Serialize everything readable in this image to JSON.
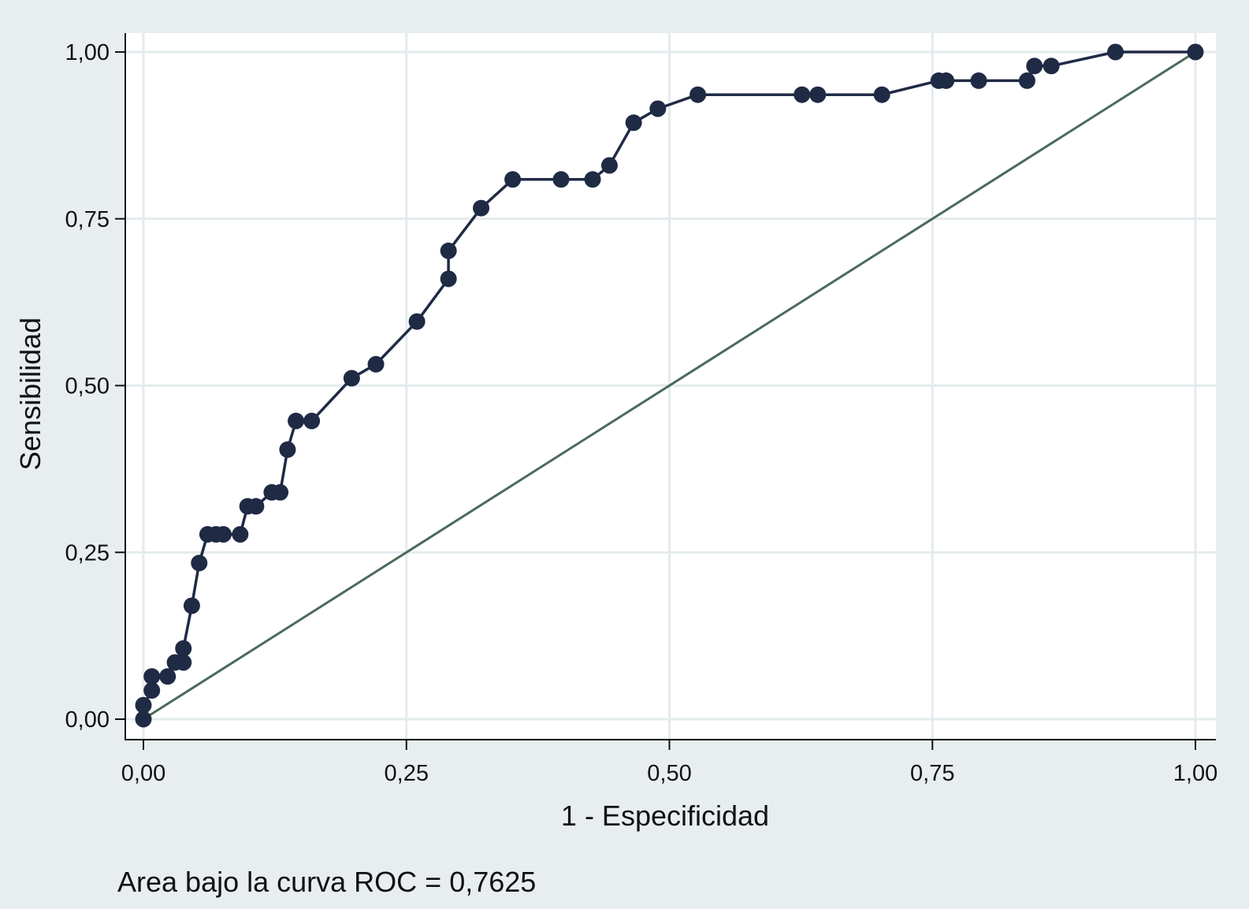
{
  "chart_data": {
    "type": "line",
    "title": "",
    "xlabel": "1 - Especificidad",
    "ylabel": "Sensibilidad",
    "xlim": [
      0,
      1
    ],
    "ylim": [
      0,
      1
    ],
    "grid": true,
    "x_ticks": [
      0,
      0.25,
      0.5,
      0.75,
      1
    ],
    "y_ticks": [
      0,
      0.25,
      0.5,
      0.75,
      1
    ],
    "x_tick_labels": [
      "0,00",
      "0,25",
      "0,50",
      "0,75",
      "1,00"
    ],
    "y_tick_labels": [
      "0,00",
      "0,25",
      "0,50",
      "0,75",
      "1,00"
    ],
    "note": "Area bajo la curva ROC = 0,7625",
    "colors": {
      "curve": "#1f2a45",
      "reference": "#4a6b5a",
      "grid": "#e4ebee",
      "panel": "#ffffff"
    },
    "series": [
      {
        "x": [
          0,
          0,
          0.008,
          0.008,
          0.023,
          0.03,
          0.038,
          0.038,
          0.046,
          0.053,
          0.061,
          0.069,
          0.076,
          0.092,
          0.099,
          0.107,
          0.122,
          0.13,
          0.137,
          0.145,
          0.16,
          0.198,
          0.221,
          0.26,
          0.29,
          0.29,
          0.321,
          0.351,
          0.397,
          0.427,
          0.443,
          0.466,
          0.489,
          0.527,
          0.626,
          0.641,
          0.702,
          0.756,
          0.763,
          0.794,
          0.84,
          0.847,
          0.863,
          0.924,
          1.0
        ],
        "y": [
          0,
          0.021,
          0.043,
          0.064,
          0.064,
          0.085,
          0.085,
          0.106,
          0.17,
          0.234,
          0.277,
          0.277,
          0.277,
          0.277,
          0.319,
          0.319,
          0.34,
          0.34,
          0.404,
          0.447,
          0.447,
          0.511,
          0.532,
          0.596,
          0.66,
          0.702,
          0.766,
          0.809,
          0.809,
          0.809,
          0.83,
          0.894,
          0.915,
          0.936,
          0.936,
          0.936,
          0.936,
          0.957,
          0.957,
          0.957,
          0.957,
          0.979,
          0.979,
          1.0,
          1.0
        ]
      },
      {
        "x": [
          0,
          1
        ],
        "y": [
          0,
          1
        ]
      }
    ]
  }
}
